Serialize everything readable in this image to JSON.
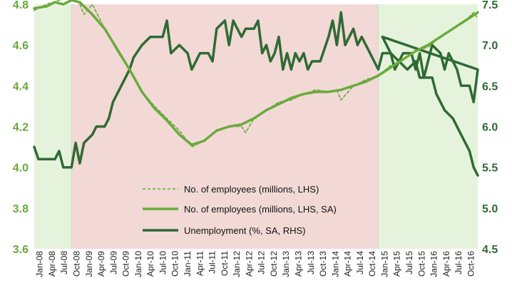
{
  "chart_data": {
    "type": "line",
    "title": "",
    "xlabel": "",
    "ylabel_left": "",
    "ylabel_right": "",
    "y_left": {
      "min": 3.6,
      "max": 4.8,
      "ticks": [
        "3.6",
        "3.8",
        "4.0",
        "4.2",
        "4.4",
        "4.6",
        "4.8"
      ]
    },
    "y_right": {
      "min": 4.5,
      "max": 7.5,
      "ticks": [
        "4.5",
        "5.0",
        "5.5",
        "6.0",
        "6.5",
        "7.0",
        "7.5"
      ]
    },
    "x_start": "2008-01",
    "x_end": "2016-12",
    "x_tick_labels": [
      "Jan-08",
      "Apr-08",
      "Jul-08",
      "Oct-08",
      "Jan-09",
      "Apr-09",
      "Jul-09",
      "Oct-09",
      "Jan-10",
      "Apr-10",
      "Jul-10",
      "Oct-10",
      "Jan-11",
      "Apr-11",
      "Jul-11",
      "Oct-11",
      "Jan-12",
      "Apr-12",
      "Jul-12",
      "Oct-12",
      "Jan-13",
      "Apr-13",
      "Jul-13",
      "Oct-13",
      "Jan-14",
      "Apr-14",
      "Jul-14",
      "Oct-14",
      "Jan-15",
      "Apr-15",
      "Jul-15",
      "Oct-15",
      "Jan-16",
      "Apr-16",
      "Jul-16",
      "Oct-16"
    ],
    "shaded_periods": [
      {
        "from": "2008-01",
        "to": "2008-10",
        "color": "#e6f3dc"
      },
      {
        "from": "2008-10",
        "to": "2014-12",
        "color": "#f2d9d6"
      },
      {
        "from": "2014-12",
        "to": "2016-12",
        "color": "#e6f3dc"
      }
    ],
    "series": [
      {
        "name": "No. of employees (millions, LHS)",
        "axis": "left",
        "style": "dashed",
        "color": "#6aaa3c",
        "points": [
          [
            "2008-01",
            4.77
          ],
          [
            "2008-04",
            4.8
          ],
          [
            "2008-07",
            4.82
          ],
          [
            "2008-10",
            4.83
          ],
          [
            "2008-12",
            4.8
          ],
          [
            "2009-01",
            4.75
          ],
          [
            "2009-03",
            4.8
          ],
          [
            "2009-06",
            4.68
          ],
          [
            "2009-09",
            4.57
          ],
          [
            "2009-12",
            4.48
          ],
          [
            "2010-03",
            4.37
          ],
          [
            "2010-06",
            4.3
          ],
          [
            "2010-09",
            4.24
          ],
          [
            "2010-12",
            4.18
          ],
          [
            "2011-03",
            4.1
          ],
          [
            "2011-06",
            4.13
          ],
          [
            "2011-09",
            4.18
          ],
          [
            "2011-12",
            4.2
          ],
          [
            "2012-03",
            4.2
          ],
          [
            "2012-04",
            4.17
          ],
          [
            "2012-06",
            4.24
          ],
          [
            "2012-09",
            4.28
          ],
          [
            "2012-12",
            4.32
          ],
          [
            "2013-03",
            4.33
          ],
          [
            "2013-06",
            4.36
          ],
          [
            "2013-09",
            4.38
          ],
          [
            "2013-12",
            4.37
          ],
          [
            "2014-02",
            4.38
          ],
          [
            "2014-03",
            4.33
          ],
          [
            "2014-06",
            4.4
          ],
          [
            "2014-09",
            4.43
          ],
          [
            "2014-12",
            4.45
          ],
          [
            "2015-03",
            4.5
          ],
          [
            "2015-06",
            4.53
          ],
          [
            "2015-09",
            4.57
          ],
          [
            "2015-12",
            4.59
          ],
          [
            "2016-03",
            4.64
          ],
          [
            "2016-06",
            4.68
          ],
          [
            "2016-09",
            4.72
          ],
          [
            "2016-11",
            4.76
          ],
          [
            "2016-12",
            4.73
          ]
        ]
      },
      {
        "name": "No. of employees (millions, LHS, SA)",
        "axis": "left",
        "style": "solid",
        "color": "#6aaa3c",
        "points": [
          [
            "2008-01",
            4.78
          ],
          [
            "2008-04",
            4.79
          ],
          [
            "2008-06",
            4.81
          ],
          [
            "2008-08",
            4.8
          ],
          [
            "2008-10",
            4.82
          ],
          [
            "2008-12",
            4.81
          ],
          [
            "2009-01",
            4.79
          ],
          [
            "2009-03",
            4.75
          ],
          [
            "2009-06",
            4.68
          ],
          [
            "2009-09",
            4.58
          ],
          [
            "2009-12",
            4.48
          ],
          [
            "2010-03",
            4.37
          ],
          [
            "2010-06",
            4.29
          ],
          [
            "2010-09",
            4.23
          ],
          [
            "2010-12",
            4.16
          ],
          [
            "2011-03",
            4.11
          ],
          [
            "2011-06",
            4.13
          ],
          [
            "2011-09",
            4.18
          ],
          [
            "2011-12",
            4.2
          ],
          [
            "2012-03",
            4.21
          ],
          [
            "2012-06",
            4.24
          ],
          [
            "2012-09",
            4.28
          ],
          [
            "2012-12",
            4.31
          ],
          [
            "2013-03",
            4.34
          ],
          [
            "2013-06",
            4.36
          ],
          [
            "2013-09",
            4.37
          ],
          [
            "2013-12",
            4.37
          ],
          [
            "2014-03",
            4.38
          ],
          [
            "2014-06",
            4.4
          ],
          [
            "2014-09",
            4.42
          ],
          [
            "2014-12",
            4.45
          ],
          [
            "2015-03",
            4.49
          ],
          [
            "2015-06",
            4.53
          ],
          [
            "2015-09",
            4.57
          ],
          [
            "2015-12",
            4.6
          ],
          [
            "2016-03",
            4.64
          ],
          [
            "2016-06",
            4.68
          ],
          [
            "2016-09",
            4.72
          ],
          [
            "2016-12",
            4.76
          ]
        ]
      },
      {
        "name": "Unemployment (%, SA, RHS)",
        "axis": "right",
        "style": "solid",
        "color": "#2e6b34",
        "points": [
          [
            "2008-01",
            5.75
          ],
          [
            "2008-02",
            5.6
          ],
          [
            "2008-04",
            5.6
          ],
          [
            "2008-06",
            5.6
          ],
          [
            "2008-07",
            5.7
          ],
          [
            "2008-08",
            5.5
          ],
          [
            "2008-10",
            5.5
          ],
          [
            "2008-11",
            5.8
          ],
          [
            "2008-12",
            5.55
          ],
          [
            "2009-01",
            5.8
          ],
          [
            "2009-03",
            5.9
          ],
          [
            "2009-04",
            6.0
          ],
          [
            "2009-06",
            6.0
          ],
          [
            "2009-07",
            6.1
          ],
          [
            "2009-08",
            6.3
          ],
          [
            "2009-10",
            6.5
          ],
          [
            "2009-12",
            6.7
          ],
          [
            "2010-01",
            6.85
          ],
          [
            "2010-03",
            7.0
          ],
          [
            "2010-05",
            7.1
          ],
          [
            "2010-08",
            7.1
          ],
          [
            "2010-09",
            7.3
          ],
          [
            "2010-10",
            6.9
          ],
          [
            "2010-12",
            7.0
          ],
          [
            "2011-02",
            6.9
          ],
          [
            "2011-03",
            6.7
          ],
          [
            "2011-05",
            6.9
          ],
          [
            "2011-07",
            6.9
          ],
          [
            "2011-08",
            6.8
          ],
          [
            "2011-09",
            7.2
          ],
          [
            "2011-11",
            7.3
          ],
          [
            "2011-12",
            7.0
          ],
          [
            "2012-01",
            7.3
          ],
          [
            "2012-03",
            7.1
          ],
          [
            "2012-04",
            7.2
          ],
          [
            "2012-06",
            7.2
          ],
          [
            "2012-07",
            7.3
          ],
          [
            "2012-08",
            6.9
          ],
          [
            "2012-09",
            7.0
          ],
          [
            "2012-10",
            6.8
          ],
          [
            "2012-11",
            6.9
          ],
          [
            "2012-12",
            7.1
          ],
          [
            "2013-01",
            6.7
          ],
          [
            "2013-02",
            6.9
          ],
          [
            "2013-03",
            6.7
          ],
          [
            "2013-04",
            6.9
          ],
          [
            "2013-05",
            6.8
          ],
          [
            "2013-06",
            6.9
          ],
          [
            "2013-07",
            6.7
          ],
          [
            "2013-08",
            6.8
          ],
          [
            "2013-10",
            6.8
          ],
          [
            "2013-12",
            7.1
          ],
          [
            "2014-01",
            7.3
          ],
          [
            "2014-02",
            7.0
          ],
          [
            "2014-03",
            7.4
          ],
          [
            "2014-04",
            7.0
          ],
          [
            "2014-06",
            7.2
          ],
          [
            "2014-07",
            7.0
          ],
          [
            "2014-08",
            7.1
          ],
          [
            "2014-10",
            6.9
          ],
          [
            "2014-12",
            6.7
          ],
          [
            "2015-01",
            6.9
          ],
          [
            "2015-03",
            6.9
          ],
          [
            "2015-04",
            6.7
          ],
          [
            "2015-06",
            6.9
          ],
          [
            "2015-08",
            6.9
          ],
          [
            "2015-09",
            6.7
          ],
          [
            "2015-10",
            6.9
          ],
          [
            "2015-11",
            6.6
          ],
          [
            "2015-12",
            6.8
          ],
          [
            "2016-01",
            7.0
          ],
          [
            "2016-03",
            6.9
          ],
          [
            "2016-04",
            6.7
          ],
          [
            "2016-05",
            6.9
          ],
          [
            "2016-07",
            6.7
          ],
          [
            "2016-08",
            6.5
          ],
          [
            "2016-10",
            6.5
          ],
          [
            "2016-11",
            6.3
          ],
          [
            "2016-12",
            6.7
          ],
          [
            "2015-01",
            7.1
          ],
          [
            "2015-03",
            6.9
          ],
          [
            "2015-05",
            6.8
          ],
          [
            "2015-07",
            6.7
          ],
          [
            "2015-09",
            6.8
          ],
          [
            "2015-10",
            6.6
          ],
          [
            "2016-01",
            6.6
          ],
          [
            "2016-02",
            6.4
          ],
          [
            "2016-04",
            6.2
          ],
          [
            "2016-06",
            6.1
          ],
          [
            "2016-08",
            5.9
          ],
          [
            "2016-10",
            5.7
          ],
          [
            "2016-11",
            5.5
          ],
          [
            "2016-12",
            5.4
          ]
        ]
      }
    ],
    "legend": {
      "placement": "bottom-center",
      "entries": [
        "No. of employees (millions, LHS)",
        "No. of employees (millions, LHS, SA)",
        "Unemployment (%, SA, RHS)"
      ]
    }
  }
}
